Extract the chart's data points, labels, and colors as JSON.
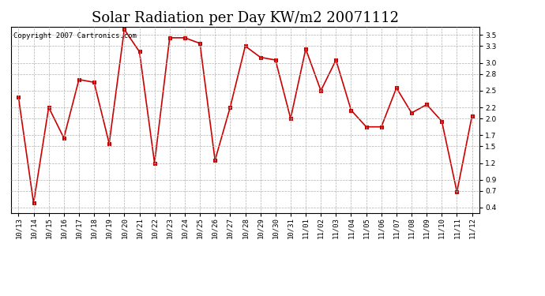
{
  "title": "Solar Radiation per Day KW/m2 20071112",
  "copyright_text": "Copyright 2007 Cartronics.com",
  "labels": [
    "10/13",
    "10/14",
    "10/15",
    "10/16",
    "10/17",
    "10/18",
    "10/19",
    "10/20",
    "10/21",
    "10/22",
    "10/23",
    "10/24",
    "10/25",
    "10/26",
    "10/27",
    "10/28",
    "10/29",
    "10/30",
    "10/31",
    "11/01",
    "11/02",
    "11/03",
    "11/04",
    "11/05",
    "11/06",
    "11/07",
    "11/08",
    "11/09",
    "11/10",
    "11/11",
    "11/12"
  ],
  "values": [
    2.38,
    0.48,
    2.2,
    1.65,
    2.7,
    2.65,
    1.55,
    3.6,
    3.2,
    1.2,
    3.45,
    3.45,
    3.35,
    1.25,
    2.2,
    3.3,
    3.1,
    3.05,
    2.0,
    3.25,
    2.5,
    3.05,
    2.15,
    1.85,
    1.85,
    2.55,
    2.1,
    2.25,
    1.95,
    0.68,
    2.05
  ],
  "line_color": "#cc0000",
  "marker_color": "#cc0000",
  "bg_color": "#ffffff",
  "grid_color": "#b0b0b0",
  "ylim_min": 0.3,
  "ylim_max": 3.65,
  "yticks": [
    0.4,
    0.7,
    0.9,
    1.2,
    1.5,
    1.7,
    2.0,
    2.2,
    2.5,
    2.8,
    3.0,
    3.3,
    3.5
  ],
  "title_fontsize": 13,
  "copyright_fontsize": 6.5,
  "tick_fontsize": 6.5
}
